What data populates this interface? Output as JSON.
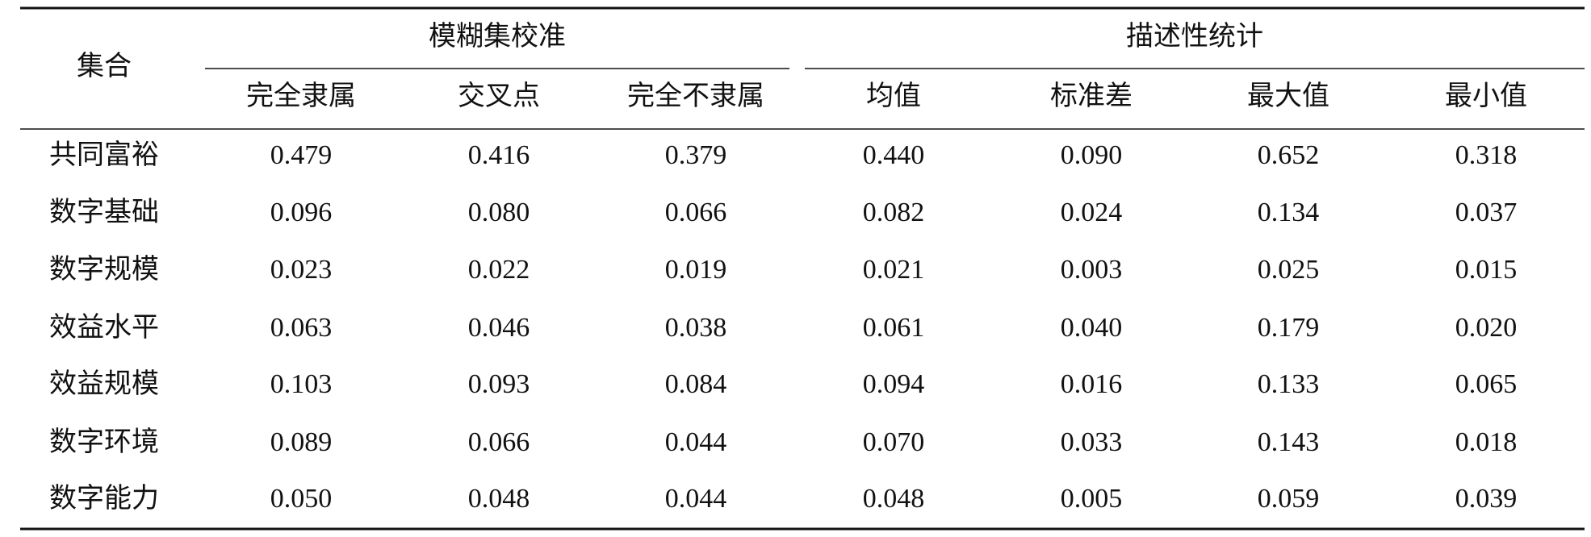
{
  "header": {
    "row_label": "集合",
    "groups": [
      {
        "title": "模糊集校准",
        "columns": [
          "完全隶属",
          "交叉点",
          "完全不隶属"
        ]
      },
      {
        "title": "描述性统计",
        "columns": [
          "均值",
          "标准差",
          "最大值",
          "最小值"
        ]
      }
    ]
  },
  "table": {
    "rows": [
      [
        "共同富裕",
        "0.479",
        "0.416",
        "0.379",
        "0.440",
        "0.090",
        "0.652",
        "0.318"
      ],
      [
        "数字基础",
        "0.096",
        "0.080",
        "0.066",
        "0.082",
        "0.024",
        "0.134",
        "0.037"
      ],
      [
        "数字规模",
        "0.023",
        "0.022",
        "0.019",
        "0.021",
        "0.003",
        "0.025",
        "0.015"
      ],
      [
        "效益水平",
        "0.063",
        "0.046",
        "0.038",
        "0.061",
        "0.040",
        "0.179",
        "0.020"
      ],
      [
        "效益规模",
        "0.103",
        "0.093",
        "0.084",
        "0.094",
        "0.016",
        "0.133",
        "0.065"
      ],
      [
        "数字环境",
        "0.089",
        "0.066",
        "0.044",
        "0.070",
        "0.033",
        "0.143",
        "0.018"
      ],
      [
        "数字能力",
        "0.050",
        "0.048",
        "0.044",
        "0.048",
        "0.005",
        "0.059",
        "0.039"
      ]
    ]
  }
}
